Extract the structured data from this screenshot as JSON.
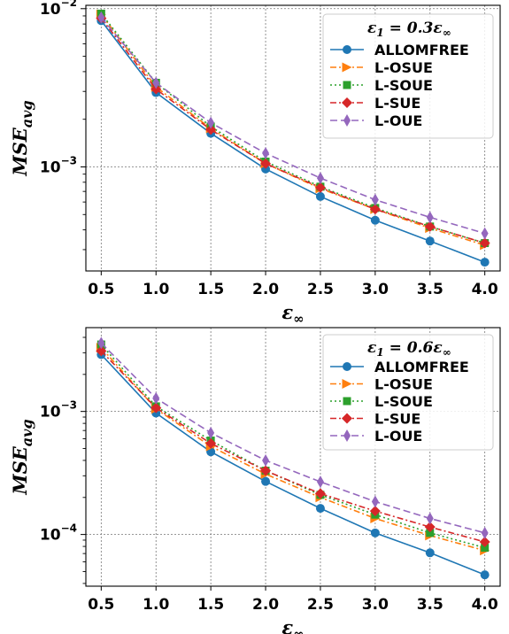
{
  "chart_data": [
    {
      "type": "line",
      "x": [
        0.5,
        1.0,
        1.5,
        2.0,
        2.5,
        3.0,
        3.5,
        4.0
      ],
      "x_tick_labels": [
        "0.5",
        "1.0",
        "1.5",
        "2.0",
        "2.5",
        "3.0",
        "3.5",
        "4.0"
      ],
      "xlabel": "ε∞",
      "ylabel": "MSEavg",
      "yscale": "log",
      "ylim": [
        0.00022,
        0.0105
      ],
      "y_ticks": [
        0.001,
        0.01
      ],
      "y_tick_labels": [
        {
          "base": "10",
          "exp": "−3"
        },
        {
          "base": "10",
          "exp": "−2"
        }
      ],
      "grid": true,
      "legend_title": "ε1 = 0.3ε∞",
      "legend_position": "upper right",
      "series": [
        {
          "name": "ALLOMFREE",
          "color": "#1f77b4",
          "marker": "circle",
          "linestyle": "solid",
          "values": [
            0.0084,
            0.00295,
            0.00163,
            0.00097,
            0.00065,
            0.00046,
            0.00034,
            0.00025
          ]
        },
        {
          "name": "L-OSUE",
          "color": "#ff7f0e",
          "marker": "triangle-right",
          "linestyle": "dashdot",
          "values": [
            0.0092,
            0.0032,
            0.00175,
            0.00105,
            0.00073,
            0.00054,
            0.00041,
            0.00032
          ]
        },
        {
          "name": "L-SOUE",
          "color": "#2ca02c",
          "marker": "square",
          "linestyle": "dotted",
          "values": [
            0.0093,
            0.0034,
            0.0018,
            0.00108,
            0.00075,
            0.00055,
            0.00042,
            0.00033
          ]
        },
        {
          "name": "L-SUE",
          "color": "#d62728",
          "marker": "diamond",
          "linestyle": "dashdot",
          "values": [
            0.0087,
            0.0031,
            0.00172,
            0.00105,
            0.00074,
            0.00054,
            0.00042,
            0.00033
          ]
        },
        {
          "name": "L-OUE",
          "color": "#9467bd",
          "marker": "thin-diamond",
          "linestyle": "dashed",
          "values": [
            0.0088,
            0.0034,
            0.0019,
            0.00122,
            0.00085,
            0.00062,
            0.00048,
            0.00038
          ]
        }
      ]
    },
    {
      "type": "line",
      "x": [
        0.5,
        1.0,
        1.5,
        2.0,
        2.5,
        3.0,
        3.5,
        4.0
      ],
      "x_tick_labels": [
        "0.5",
        "1.0",
        "1.5",
        "2.0",
        "2.5",
        "3.0",
        "3.5",
        "4.0"
      ],
      "xlabel": "ε∞",
      "ylabel": "MSEavg",
      "yscale": "log",
      "ylim": [
        3.8e-05,
        0.0048
      ],
      "y_ticks": [
        0.0001,
        0.001
      ],
      "y_tick_labels": [
        {
          "base": "10",
          "exp": "−4"
        },
        {
          "base": "10",
          "exp": "−3"
        }
      ],
      "grid": true,
      "legend_title": "ε1 = 0.6ε∞",
      "legend_position": "upper right",
      "series": [
        {
          "name": "ALLOMFREE",
          "color": "#1f77b4",
          "marker": "circle",
          "linestyle": "solid",
          "values": [
            0.0029,
            0.00097,
            0.00047,
            0.00027,
            0.000163,
            0.000103,
            7.1e-05,
            4.7e-05
          ]
        },
        {
          "name": "L-OSUE",
          "color": "#ff7f0e",
          "marker": "triangle-right",
          "linestyle": "dashdot",
          "values": [
            0.0033,
            0.00105,
            0.00052,
            0.00031,
            0.0002,
            0.000135,
            9.8e-05,
            7.4e-05
          ]
        },
        {
          "name": "L-SOUE",
          "color": "#2ca02c",
          "marker": "square",
          "linestyle": "dotted",
          "values": [
            0.0035,
            0.0011,
            0.00058,
            0.00033,
            0.00021,
            0.000145,
            0.000103,
            7.8e-05
          ]
        },
        {
          "name": "L-SUE",
          "color": "#d62728",
          "marker": "diamond",
          "linestyle": "dashdot",
          "values": [
            0.0031,
            0.00107,
            0.00055,
            0.00033,
            0.000215,
            0.000155,
            0.000115,
            8.7e-05
          ]
        },
        {
          "name": "L-OUE",
          "color": "#9467bd",
          "marker": "thin-diamond",
          "linestyle": "dashed",
          "values": [
            0.0036,
            0.00128,
            0.00067,
            0.0004,
            0.000268,
            0.000185,
            0.000135,
            0.000103
          ]
        }
      ]
    }
  ]
}
